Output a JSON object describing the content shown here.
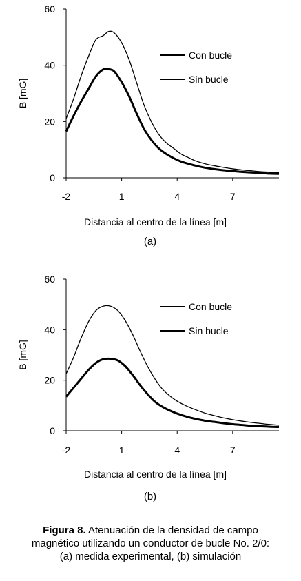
{
  "chart_data": [
    {
      "type": "line",
      "panel_label": "(a)",
      "xlabel": "Distancia al centro de la línea [m]",
      "ylabel": "B [mG]",
      "xlim": [
        -2,
        9.5
      ],
      "ylim": [
        0,
        60
      ],
      "x_ticks": [
        -2,
        1,
        4,
        7
      ],
      "y_ticks": [
        0,
        20,
        40,
        60
      ],
      "legend": "top-right",
      "series": [
        {
          "name": "Con bucle",
          "line_weight": "thick",
          "x": [
            -2,
            -1.6,
            -1.2,
            -0.8,
            -0.4,
            0,
            0.3,
            0.6,
            1.0,
            1.4,
            1.8,
            2.2,
            2.6,
            3.0,
            3.4,
            3.8,
            4.2,
            4.6,
            5.0,
            5.5,
            6.0,
            6.5,
            7.0,
            7.5,
            8.0,
            8.5,
            9.0,
            9.5
          ],
          "values": [
            16.5,
            22,
            27,
            31.5,
            36,
            38.5,
            38.6,
            37.8,
            34,
            29,
            23,
            17.5,
            13.5,
            10.5,
            8.5,
            7,
            5.8,
            5.0,
            4.3,
            3.6,
            3.1,
            2.7,
            2.4,
            2.1,
            1.9,
            1.7,
            1.5,
            1.4
          ]
        },
        {
          "name": "Sin bucle",
          "line_weight": "thin",
          "x": [
            -2,
            -1.6,
            -1.2,
            -0.8,
            -0.4,
            0,
            0.3,
            0.6,
            1.0,
            1.4,
            1.8,
            2.2,
            2.6,
            3.0,
            3.4,
            3.8,
            4.2,
            4.6,
            5.0,
            5.5,
            6.0,
            6.5,
            7.0,
            7.5,
            8.0,
            8.5,
            9.0,
            9.5
          ],
          "values": [
            21,
            28,
            36,
            43,
            49,
            50.5,
            52,
            51.5,
            48,
            42,
            34,
            26,
            20,
            15.5,
            12.5,
            10.5,
            8.5,
            7.2,
            6.0,
            5.0,
            4.3,
            3.7,
            3.2,
            2.8,
            2.5,
            2.2,
            2.0,
            1.8
          ]
        }
      ]
    },
    {
      "type": "line",
      "panel_label": "(b)",
      "xlabel": "Distancia al centro de la línea [m]",
      "ylabel": "B [mG]",
      "xlim": [
        -2,
        9.5
      ],
      "ylim": [
        0,
        60
      ],
      "x_ticks": [
        -2,
        1,
        4,
        7
      ],
      "y_ticks": [
        0,
        20,
        40,
        60
      ],
      "legend": "top-right",
      "series": [
        {
          "name": "Con bucle",
          "line_weight": "thick",
          "x": [
            -2,
            -1.6,
            -1.2,
            -0.8,
            -0.4,
            0,
            0.4,
            0.8,
            1.2,
            1.6,
            2.0,
            2.4,
            2.8,
            3.2,
            3.6,
            4.0,
            4.5,
            5.0,
            5.5,
            6.0,
            6.5,
            7.0,
            7.5,
            8.0,
            8.5,
            9.0,
            9.5
          ],
          "values": [
            13.5,
            17,
            20.5,
            24,
            26.8,
            28.3,
            28.5,
            27.8,
            25.5,
            22,
            18,
            14.5,
            11.5,
            9.5,
            8.0,
            6.8,
            5.6,
            4.7,
            4.0,
            3.5,
            3.0,
            2.6,
            2.3,
            2.0,
            1.8,
            1.6,
            1.5
          ]
        },
        {
          "name": "Sin bucle",
          "line_weight": "thin",
          "x": [
            -2,
            -1.6,
            -1.2,
            -0.8,
            -0.4,
            0,
            0.4,
            0.8,
            1.2,
            1.6,
            2.0,
            2.4,
            2.8,
            3.2,
            3.6,
            4.0,
            4.5,
            5.0,
            5.5,
            6.0,
            6.5,
            7.0,
            7.5,
            8.0,
            8.5,
            9.0,
            9.5
          ],
          "values": [
            22.5,
            29,
            36.5,
            43,
            47.5,
            49.3,
            49.3,
            47.5,
            43.5,
            38,
            31.5,
            25.5,
            20.5,
            16.5,
            13.8,
            11.7,
            9.8,
            8.3,
            7.0,
            6.0,
            5.1,
            4.4,
            3.8,
            3.3,
            2.9,
            2.5,
            2.2
          ]
        }
      ]
    }
  ],
  "caption": {
    "figure_label": "Figura 8.",
    "line1_rest": " Atenuación de la densidad de campo",
    "line2": "magnético utilizando un conductor de bucle No. 2/0:",
    "line3": "(a) medida experimental, (b) simulación"
  },
  "colors": {
    "line": "#000000",
    "axis": "#000000"
  }
}
